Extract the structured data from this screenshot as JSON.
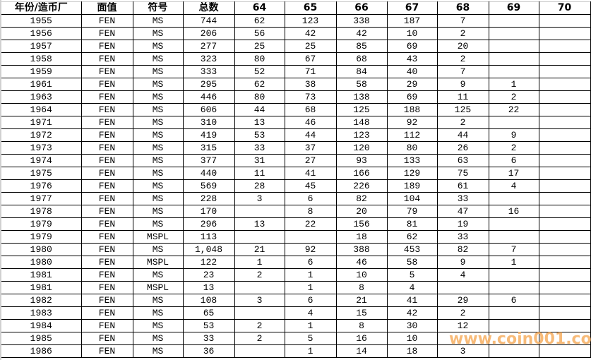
{
  "table": {
    "headers": [
      "年份/造币厂",
      "面值",
      "符号",
      "总数",
      "64",
      "65",
      "66",
      "67",
      "68",
      "69",
      "70"
    ],
    "rows": [
      [
        "1955",
        "FEN",
        "MS",
        "744",
        "62",
        "123",
        "338",
        "187",
        "7",
        "",
        ""
      ],
      [
        "1956",
        "FEN",
        "MS",
        "206",
        "56",
        "42",
        "42",
        "10",
        "2",
        "",
        ""
      ],
      [
        "1957",
        "FEN",
        "MS",
        "277",
        "25",
        "25",
        "85",
        "69",
        "20",
        "",
        ""
      ],
      [
        "1958",
        "FEN",
        "MS",
        "323",
        "80",
        "67",
        "68",
        "43",
        "2",
        "",
        ""
      ],
      [
        "1959",
        "FEN",
        "MS",
        "333",
        "52",
        "71",
        "84",
        "40",
        "7",
        "",
        ""
      ],
      [
        "1961",
        "FEN",
        "MS",
        "295",
        "62",
        "38",
        "58",
        "29",
        "9",
        "1",
        ""
      ],
      [
        "1963",
        "FEN",
        "MS",
        "446",
        "80",
        "73",
        "138",
        "69",
        "11",
        "2",
        ""
      ],
      [
        "1964",
        "FEN",
        "MS",
        "606",
        "44",
        "68",
        "125",
        "188",
        "125",
        "22",
        ""
      ],
      [
        "1971",
        "FEN",
        "MS",
        "310",
        "13",
        "46",
        "148",
        "92",
        "2",
        "",
        ""
      ],
      [
        "1972",
        "FEN",
        "MS",
        "419",
        "53",
        "44",
        "123",
        "112",
        "44",
        "9",
        ""
      ],
      [
        "1973",
        "FEN",
        "MS",
        "315",
        "33",
        "37",
        "120",
        "80",
        "26",
        "2",
        ""
      ],
      [
        "1974",
        "FEN",
        "MS",
        "377",
        "31",
        "27",
        "93",
        "133",
        "63",
        "6",
        ""
      ],
      [
        "1975",
        "FEN",
        "MS",
        "440",
        "11",
        "41",
        "166",
        "129",
        "75",
        "17",
        ""
      ],
      [
        "1976",
        "FEN",
        "MS",
        "569",
        "28",
        "45",
        "226",
        "189",
        "61",
        "4",
        ""
      ],
      [
        "1977",
        "FEN",
        "MS",
        "228",
        "3",
        "6",
        "82",
        "104",
        "33",
        "",
        ""
      ],
      [
        "1978",
        "FEN",
        "MS",
        "170",
        "",
        "8",
        "20",
        "79",
        "47",
        "16",
        ""
      ],
      [
        "1979",
        "FEN",
        "MS",
        "296",
        "13",
        "22",
        "156",
        "81",
        "19",
        "",
        ""
      ],
      [
        "1979",
        "FEN",
        "MSPL",
        "113",
        "",
        "",
        "18",
        "62",
        "33",
        "",
        ""
      ],
      [
        "1980",
        "FEN",
        "MS",
        "1,048",
        "21",
        "92",
        "388",
        "453",
        "82",
        "7",
        ""
      ],
      [
        "1980",
        "FEN",
        "MSPL",
        "122",
        "1",
        "6",
        "46",
        "58",
        "9",
        "1",
        ""
      ],
      [
        "1981",
        "FEN",
        "MS",
        "23",
        "2",
        "1",
        "10",
        "5",
        "4",
        "",
        ""
      ],
      [
        "1981",
        "FEN",
        "MSPL",
        "13",
        "",
        "1",
        "8",
        "4",
        "",
        "",
        ""
      ],
      [
        "1982",
        "FEN",
        "MS",
        "108",
        "3",
        "6",
        "21",
        "41",
        "29",
        "6",
        ""
      ],
      [
        "1983",
        "FEN",
        "MS",
        "65",
        "",
        "4",
        "15",
        "42",
        "2",
        "",
        ""
      ],
      [
        "1984",
        "FEN",
        "MS",
        "53",
        "2",
        "1",
        "8",
        "30",
        "12",
        "",
        ""
      ],
      [
        "1985",
        "FEN",
        "MS",
        "33",
        "2",
        "5",
        "16",
        "10",
        "",
        "",
        ""
      ],
      [
        "1986",
        "FEN",
        "MS",
        "36",
        "",
        "1",
        "14",
        "18",
        "3",
        "",
        ""
      ]
    ]
  },
  "watermark": "www.coin001.com"
}
